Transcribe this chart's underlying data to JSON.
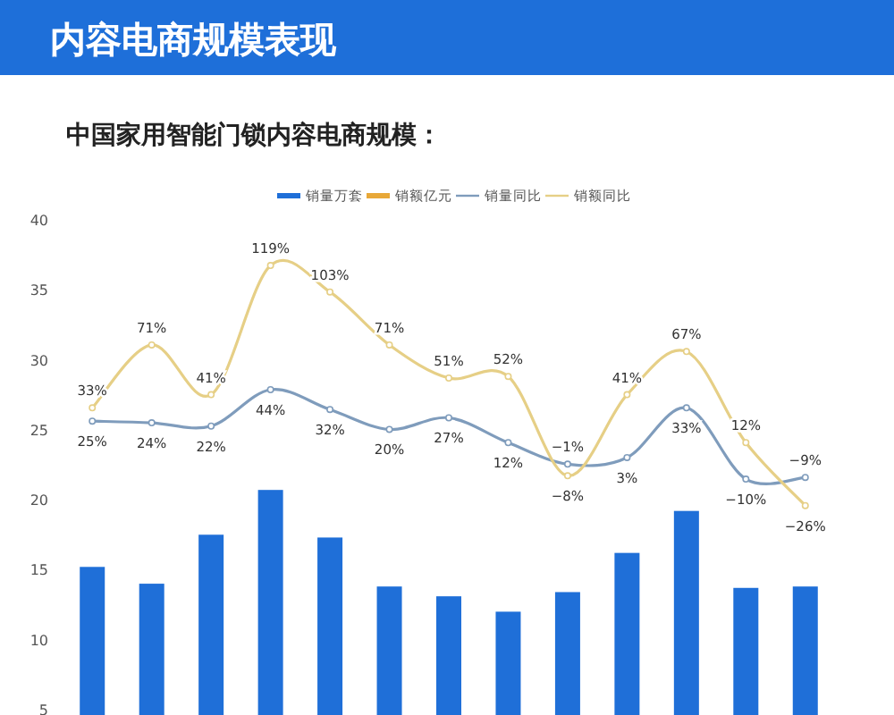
{
  "chart_data": {
    "type": "bar",
    "title": "内容电商规模表现",
    "subtitle": "中国家用智能门锁内容电商规模：",
    "categories": [
      null,
      null,
      null,
      null,
      null,
      null,
      null,
      null,
      null,
      null,
      null,
      null,
      null
    ],
    "series": [
      {
        "name": "销量万套",
        "color": "#1f6fd8",
        "values": [
          15.2,
          14.0,
          17.5,
          20.7,
          17.3,
          13.8,
          13.1,
          12.0,
          13.4,
          16.2,
          19.2,
          13.7,
          13.8
        ]
      },
      {
        "name": "销额亿元",
        "color": "#e8a838",
        "values": [
          null,
          null,
          null,
          null,
          null,
          null,
          null,
          null,
          null,
          null,
          null,
          null,
          null
        ]
      },
      {
        "name": "销量同比",
        "type": "line",
        "axis": "y2",
        "color": "#7f9cbc",
        "marker": "circle",
        "values": [
          25,
          24,
          22,
          44,
          32,
          20,
          27,
          12,
          -1,
          3,
          33,
          -10,
          -9
        ],
        "value_labels": [
          "25%",
          "24%",
          "22%",
          "44%",
          "32%",
          "20%",
          "27%",
          "12%",
          "−1%",
          "3%",
          "33%",
          "−10%",
          "−9%"
        ]
      },
      {
        "name": "销额同比",
        "type": "line",
        "axis": "y2",
        "color": "#e6cf86",
        "marker": "circle",
        "values": [
          33,
          71,
          41,
          119,
          103,
          71,
          51,
          52,
          -8,
          41,
          67,
          12,
          -26
        ],
        "value_labels": [
          "33%",
          "71%",
          "41%",
          "119%",
          "103%",
          "71%",
          "51%",
          "52%",
          "−8%",
          "41%",
          "67%",
          "12%",
          "−26%"
        ]
      }
    ],
    "ylim": [
      5,
      40
    ],
    "yticks": [
      5,
      10,
      15,
      20,
      25,
      30,
      35,
      40
    ],
    "tick_labels": "y",
    "legend": "top",
    "grid": false
  }
}
